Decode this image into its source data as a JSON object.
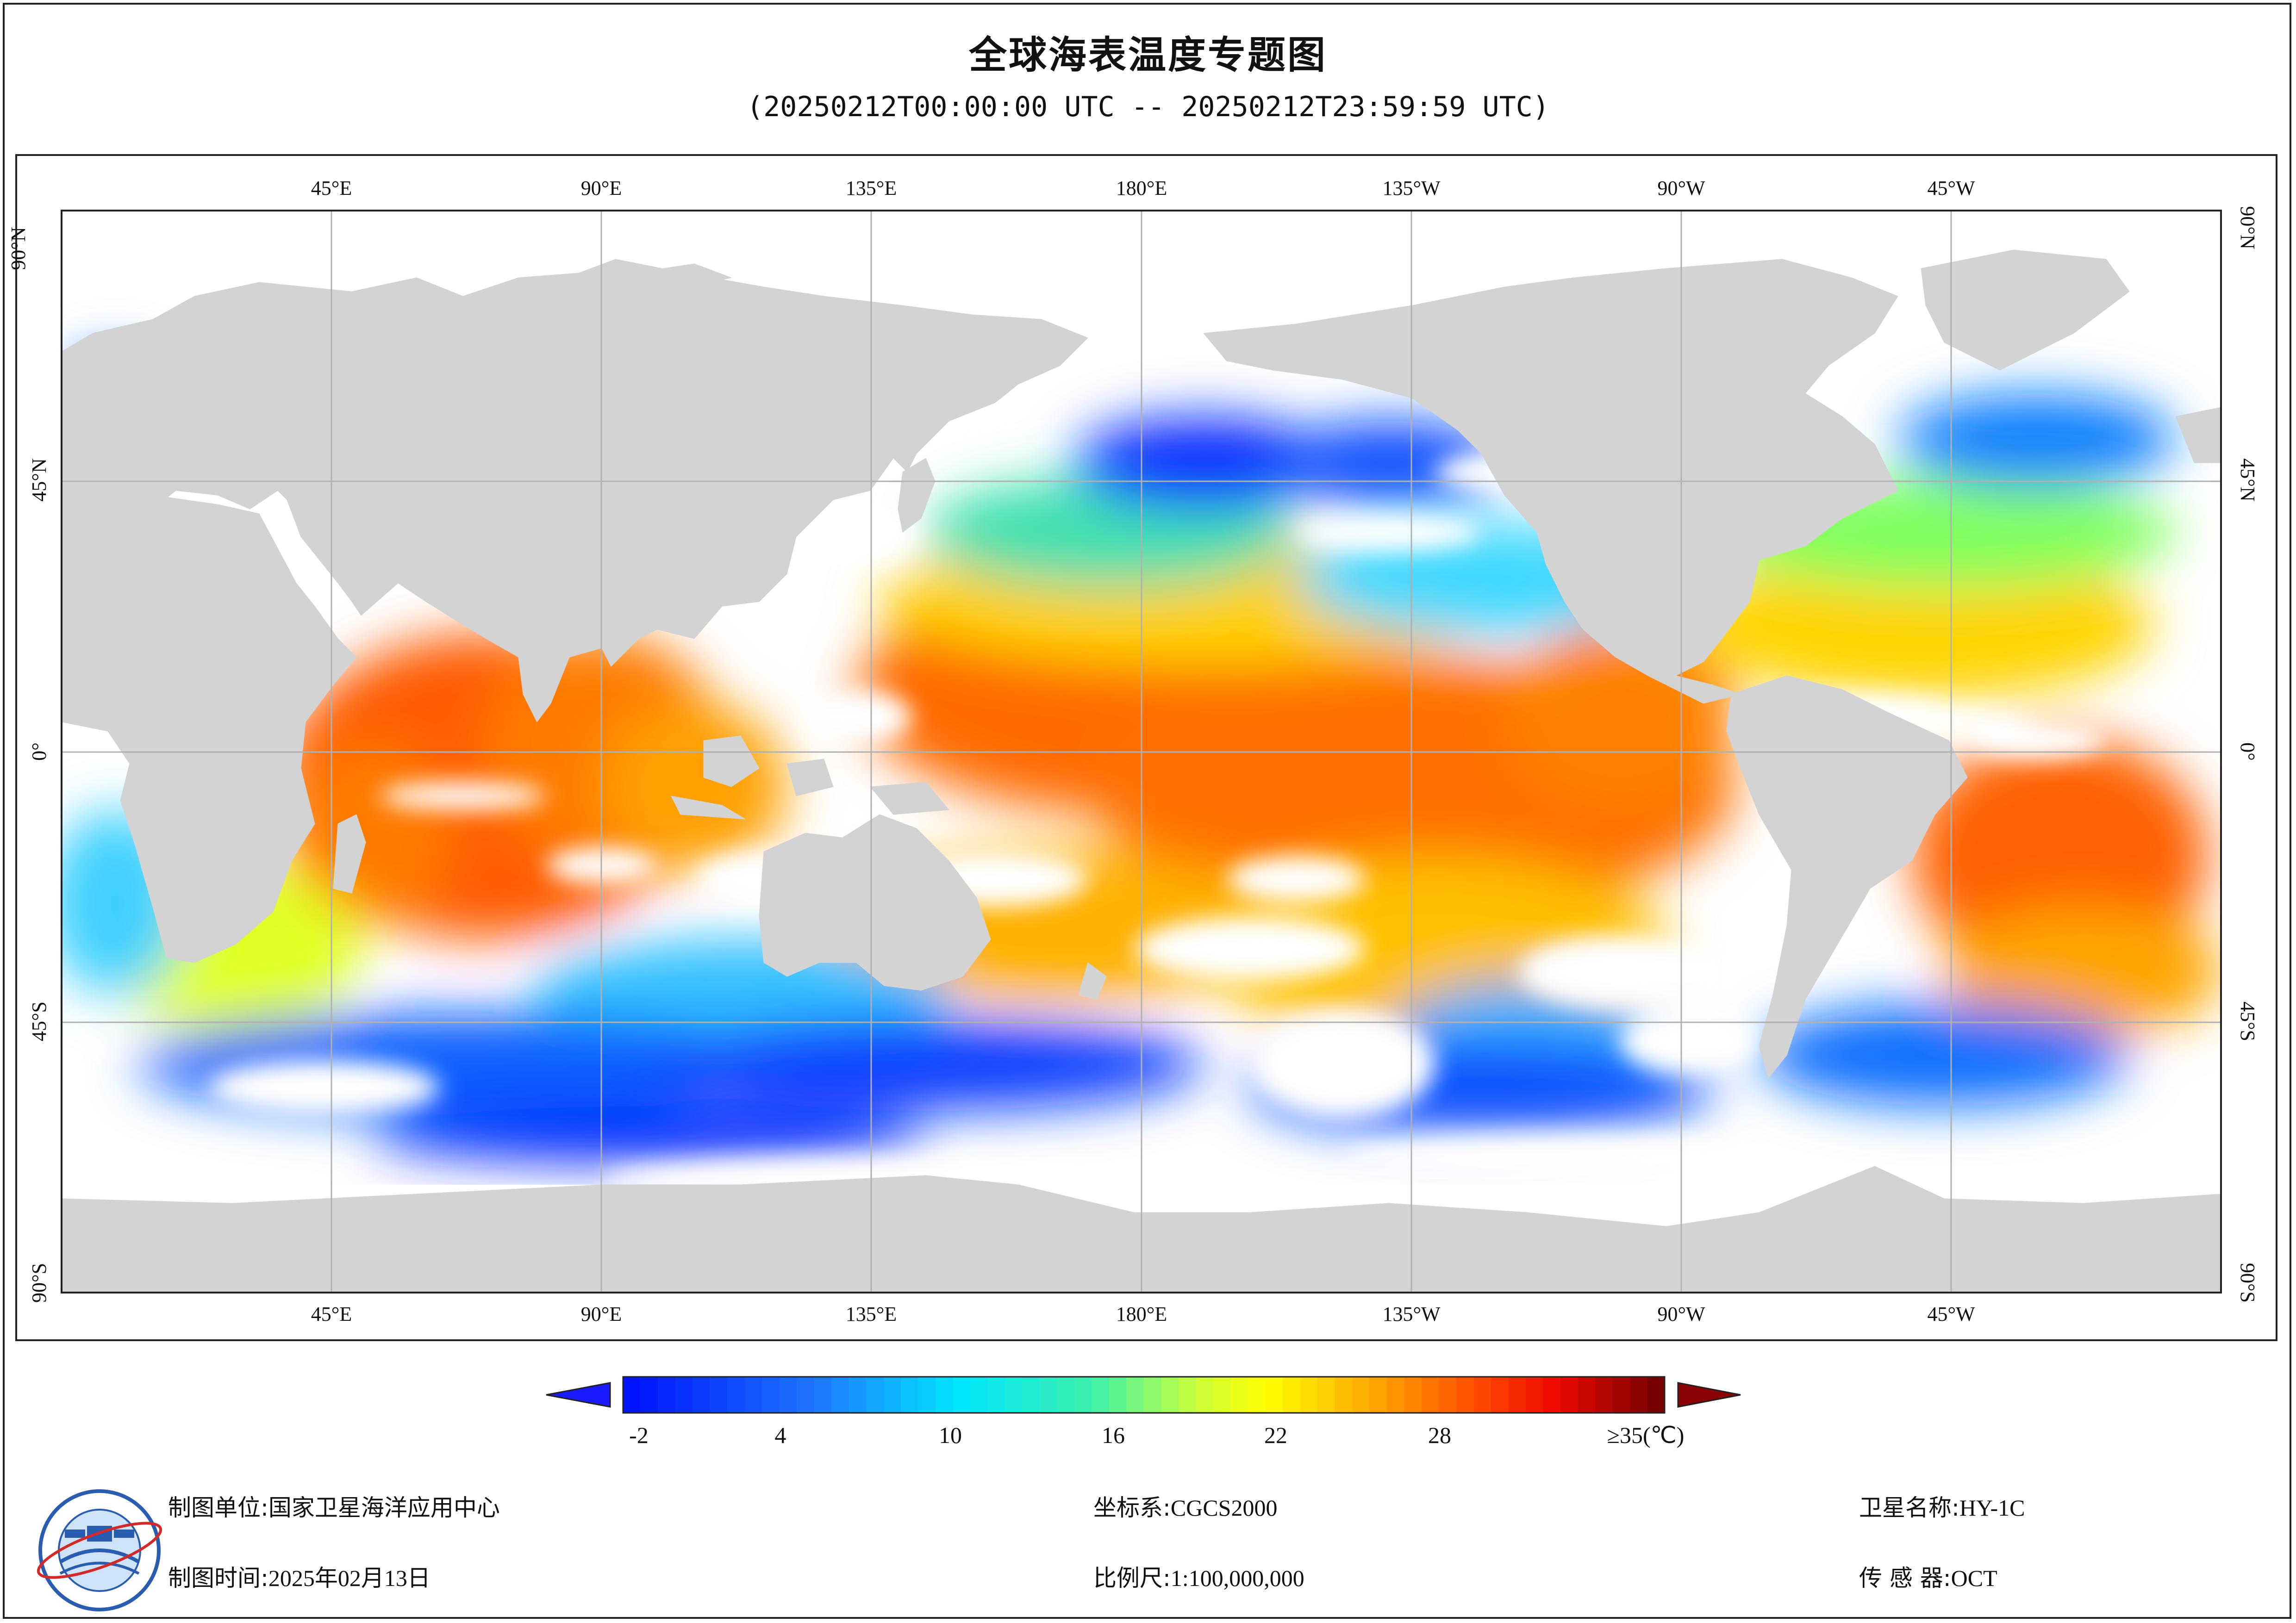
{
  "title": "全球海表温度专题图",
  "subtitle": "(20250212T00:00:00 UTC -- 20250212T23:59:59 UTC)",
  "map": {
    "lon_labels": [
      "45°E",
      "90°E",
      "135°E",
      "180°E",
      "135°W",
      "90°W",
      "45°W"
    ],
    "lat_labels": [
      "90°N",
      "45°N",
      "0°",
      "45°S",
      "90°S"
    ],
    "colors": {
      "land": "#d3d3d3",
      "no_data": "#ffffff",
      "grid": "#b0b0b0"
    }
  },
  "colorbar": {
    "labels": [
      "-2",
      "4",
      "10",
      "16",
      "22",
      "28",
      "≥35(℃)"
    ],
    "unit": "℃",
    "under_color": "#1a1aff",
    "over_color": "#8b0000"
  },
  "footer": {
    "unit_label": "制图单位:",
    "unit_value": "国家卫星海洋应用中心",
    "time_label": "制图时间:",
    "time_value": "2025年02月13日",
    "crs_label": "坐标系:",
    "crs_value": "CGCS2000",
    "scale_label": "比例尺:",
    "scale_value": "1:100,000,000",
    "satellite_label": "卫星名称:",
    "satellite_value": "HY-1C",
    "sensor_label": "传 感 器:",
    "sensor_value": "OCT"
  }
}
